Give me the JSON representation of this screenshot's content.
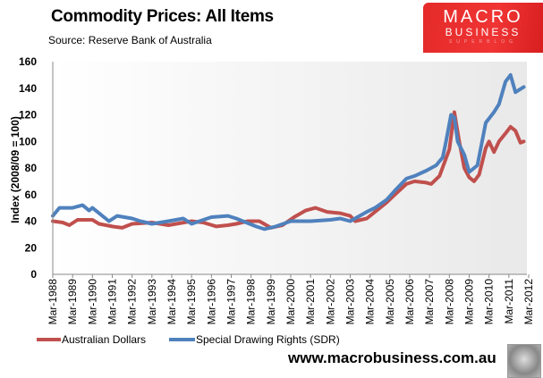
{
  "header": {
    "title": "Commodity Prices: All Items",
    "subtitle": "Source: Reserve Bank of Australia",
    "logo": {
      "line1": "MACRO",
      "line2": "BUSINESS",
      "line3": "SUPERBLOG"
    },
    "site_url": "www.macrobusiness.com.au"
  },
  "chart_data": {
    "type": "line",
    "title": "Commodity Prices: All Items",
    "ylabel": "Index (2008/09  = 100)",
    "xlabel": "",
    "ylim": [
      0,
      160
    ],
    "yticks": [
      0,
      20,
      40,
      60,
      80,
      100,
      120,
      140,
      160
    ],
    "xlim": [
      "1988-03",
      "2012-03"
    ],
    "xtick_labels": [
      "Mar-1988",
      "Mar-1989",
      "Mar-1990",
      "Mar-1991",
      "Mar-1992",
      "Mar-1993",
      "Mar-1994",
      "Mar-1995",
      "Mar-1996",
      "Mar-1997",
      "Mar-1998",
      "Mar-1999",
      "Mar-2000",
      "Mar-2001",
      "Mar-2002",
      "Mar-2003",
      "Mar-2004",
      "Mar-2005",
      "Mar-2006",
      "Mar-2007",
      "Mar-2008",
      "Mar-2009",
      "Mar-2010",
      "Mar-2011",
      "Mar-2012"
    ],
    "grid": false,
    "legend": "bottom",
    "series": [
      {
        "name": "Australian Dollars",
        "color": "#c0504d",
        "points": [
          [
            "1988-03",
            40
          ],
          [
            "1988-09",
            39
          ],
          [
            "1989-01",
            37
          ],
          [
            "1989-06",
            41
          ],
          [
            "1990-03",
            41
          ],
          [
            "1990-07",
            38
          ],
          [
            "1991-03",
            36
          ],
          [
            "1991-09",
            35
          ],
          [
            "1992-03",
            38
          ],
          [
            "1993-03",
            39
          ],
          [
            "1994-01",
            37
          ],
          [
            "1995-03",
            40
          ],
          [
            "1995-10",
            39
          ],
          [
            "1996-06",
            36
          ],
          [
            "1997-01",
            37
          ],
          [
            "1997-06",
            38
          ],
          [
            "1998-01",
            40
          ],
          [
            "1998-08",
            40
          ],
          [
            "1999-03",
            35
          ],
          [
            "1999-10",
            37
          ],
          [
            "2000-05",
            43
          ],
          [
            "2000-12",
            48
          ],
          [
            "2001-06",
            50
          ],
          [
            "2002-01",
            47
          ],
          [
            "2002-09",
            46
          ],
          [
            "2003-03",
            44
          ],
          [
            "2003-06",
            40
          ],
          [
            "2004-01",
            42
          ],
          [
            "2004-06",
            47
          ],
          [
            "2005-01",
            54
          ],
          [
            "2005-06",
            60
          ],
          [
            "2006-01",
            68
          ],
          [
            "2006-06",
            70
          ],
          [
            "2007-01",
            69
          ],
          [
            "2007-04",
            68
          ],
          [
            "2007-09",
            74
          ],
          [
            "2008-03",
            94
          ],
          [
            "2008-06",
            122
          ],
          [
            "2008-09",
            100
          ],
          [
            "2008-12",
            80
          ],
          [
            "2009-03",
            73
          ],
          [
            "2009-06",
            70
          ],
          [
            "2009-09",
            75
          ],
          [
            "2010-01",
            95
          ],
          [
            "2010-03",
            100
          ],
          [
            "2010-06",
            92
          ],
          [
            "2010-09",
            100
          ],
          [
            "2011-01",
            106
          ],
          [
            "2011-04",
            111
          ],
          [
            "2011-07",
            108
          ],
          [
            "2011-10",
            99
          ],
          [
            "2011-12",
            100
          ]
        ]
      },
      {
        "name": "Special Drawing Rights (SDR)",
        "color": "#4f81bd",
        "points": [
          [
            "1988-03",
            44
          ],
          [
            "1988-07",
            50
          ],
          [
            "1989-03",
            50
          ],
          [
            "1989-09",
            52
          ],
          [
            "1990-01",
            48
          ],
          [
            "1990-03",
            50
          ],
          [
            "1990-07",
            46
          ],
          [
            "1991-01",
            40
          ],
          [
            "1991-06",
            44
          ],
          [
            "1992-03",
            42
          ],
          [
            "1992-08",
            40
          ],
          [
            "1993-03",
            38
          ],
          [
            "1994-01",
            40
          ],
          [
            "1994-10",
            42
          ],
          [
            "1995-03",
            38
          ],
          [
            "1996-03",
            43
          ],
          [
            "1997-01",
            44
          ],
          [
            "1997-06",
            42
          ],
          [
            "1998-06",
            36
          ],
          [
            "1998-11",
            34
          ],
          [
            "1999-06",
            36
          ],
          [
            "2000-03",
            40
          ],
          [
            "2001-03",
            40
          ],
          [
            "2002-03",
            41
          ],
          [
            "2002-09",
            42
          ],
          [
            "2003-03",
            40
          ],
          [
            "2004-01",
            47
          ],
          [
            "2004-06",
            50
          ],
          [
            "2005-01",
            56
          ],
          [
            "2005-06",
            63
          ],
          [
            "2006-01",
            72
          ],
          [
            "2006-06",
            74
          ],
          [
            "2007-01",
            78
          ],
          [
            "2007-07",
            82
          ],
          [
            "2007-11",
            88
          ],
          [
            "2008-01",
            100
          ],
          [
            "2008-04",
            120
          ],
          [
            "2008-06",
            118
          ],
          [
            "2008-08",
            100
          ],
          [
            "2008-12",
            90
          ],
          [
            "2009-03",
            77
          ],
          [
            "2009-08",
            82
          ],
          [
            "2010-01",
            114
          ],
          [
            "2010-06",
            122
          ],
          [
            "2010-09",
            128
          ],
          [
            "2011-01",
            145
          ],
          [
            "2011-04",
            150
          ],
          [
            "2011-07",
            137
          ],
          [
            "2011-12",
            141
          ]
        ]
      }
    ]
  }
}
